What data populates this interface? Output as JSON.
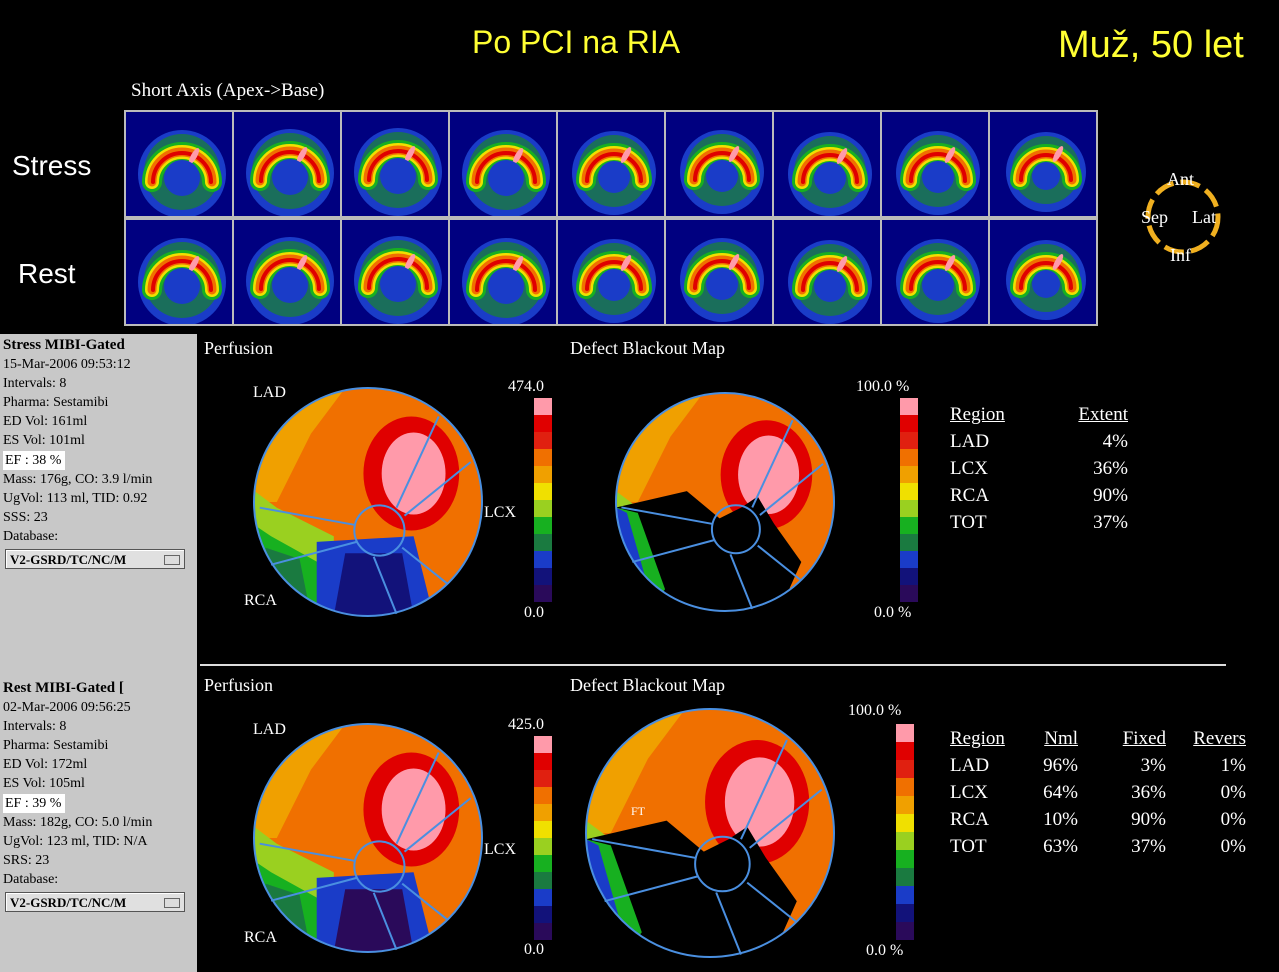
{
  "header": {
    "title": "Po PCI na RIA",
    "patient": "Muž, 50 let"
  },
  "short_axis": {
    "label": "Short Axis (Apex->Base)",
    "rows": [
      "Stress",
      "Rest"
    ],
    "columns": 9
  },
  "orientation": {
    "ant": "Ant",
    "sep": "Sep",
    "lat": "Lat",
    "inf": "Inf"
  },
  "colors": {
    "title_yellow": "#ffff33",
    "orientation_ring": "#f0b020",
    "scale": [
      "#2a0a5a",
      "#12127a",
      "#1a3cc8",
      "#1a7a40",
      "#17b020",
      "#9ad020",
      "#f0e000",
      "#f0a000",
      "#f07000",
      "#e02010",
      "#e00000",
      "#ff9aaa"
    ]
  },
  "stress": {
    "info": {
      "title": "Stress MIBI-Gated",
      "date": "15-Mar-2006 09:53:12",
      "intervals": "Intervals: 8",
      "pharma": "Pharma: Sestamibi",
      "ed_vol": "ED Vol:  161ml",
      "es_vol": "ES Vol:  101ml",
      "ef": "EF  : 38 %",
      "mass": "Mass: 176g, CO: 3.9 l/min",
      "ugvol": "UgVol:  113 ml,  TID: 0.92",
      "score": "SSS: 23",
      "database_label": "Database:",
      "database_value": "V2-GSRD/TC/NC/M"
    },
    "perfusion": {
      "title": "Perfusion",
      "lad": "LAD",
      "lcx": "LCX",
      "rca": "RCA",
      "scale_max": "474.0",
      "scale_min": "0.0"
    },
    "blackout": {
      "title": "Defect Blackout Map",
      "scale_max": "100.0 %",
      "scale_min": "0.0 %"
    },
    "table": {
      "headers": [
        "Region",
        "Extent"
      ],
      "rows": [
        [
          "LAD",
          "4%"
        ],
        [
          "LCX",
          "36%"
        ],
        [
          "RCA",
          "90%"
        ],
        [
          "TOT",
          "37%"
        ]
      ]
    }
  },
  "rest": {
    "info": {
      "title": "Rest MIBI-Gated [",
      "date": "02-Mar-2006 09:56:25",
      "intervals": "Intervals: 8",
      "pharma": "Pharma: Sestamibi",
      "ed_vol": "ED Vol:  172ml",
      "es_vol": "ES Vol:  105ml",
      "ef": "EF  : 39 %",
      "mass": "Mass: 182g, CO: 5.0 l/min",
      "ugvol": "UgVol:  123 ml,  TID: N/A",
      "score": "SRS: 23",
      "database_label": "Database:",
      "database_value": "V2-GSRD/TC/NC/M"
    },
    "perfusion": {
      "title": "Perfusion",
      "lad": "LAD",
      "lcx": "LCX",
      "rca": "RCA",
      "scale_max": "425.0",
      "scale_min": "0.0"
    },
    "blackout": {
      "title": "Defect Blackout Map",
      "scale_max": "100.0 %",
      "scale_min": "0.0 %",
      "marker": "FT"
    },
    "table": {
      "headers": [
        "Region",
        "Nml",
        "Fixed",
        "Revers"
      ],
      "rows": [
        [
          "LAD",
          "96%",
          "3%",
          "1%"
        ],
        [
          "LCX",
          "64%",
          "36%",
          "0%"
        ],
        [
          "RCA",
          "10%",
          "90%",
          "0%"
        ],
        [
          "TOT",
          "63%",
          "37%",
          "0%"
        ]
      ]
    }
  }
}
